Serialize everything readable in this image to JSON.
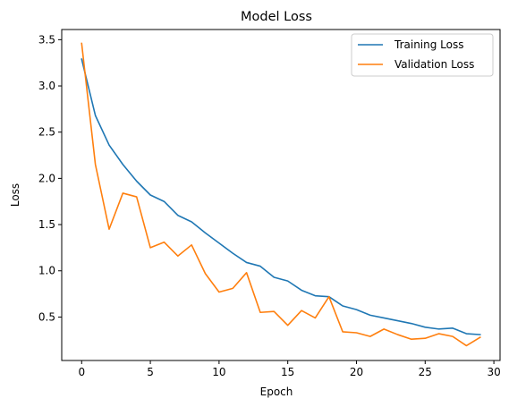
{
  "chart_data": {
    "type": "line",
    "title": "Model Loss",
    "xlabel": "Epoch",
    "ylabel": "Loss",
    "xlim": [
      -1.45,
      30.45
    ],
    "ylim": [
      0.03,
      3.61
    ],
    "xticks": [
      0,
      5,
      10,
      15,
      20,
      25,
      30
    ],
    "yticks": [
      0.5,
      1.0,
      1.5,
      2.0,
      2.5,
      3.0,
      3.5
    ],
    "xtick_labels": [
      "0",
      "5",
      "10",
      "15",
      "20",
      "25",
      "30"
    ],
    "ytick_labels": [
      "0.5",
      "1.0",
      "1.5",
      "2.0",
      "2.5",
      "3.0",
      "3.5"
    ],
    "grid": false,
    "legend_position": "top-right",
    "x": [
      0,
      1,
      2,
      3,
      4,
      5,
      6,
      7,
      8,
      9,
      10,
      11,
      12,
      13,
      14,
      15,
      16,
      17,
      18,
      19,
      20,
      21,
      22,
      23,
      24,
      25,
      26,
      27,
      28,
      29
    ],
    "series": [
      {
        "name": "Training Loss",
        "color": "#1f77b4",
        "values": [
          3.29,
          2.68,
          2.36,
          2.15,
          1.97,
          1.82,
          1.75,
          1.6,
          1.53,
          1.41,
          1.3,
          1.19,
          1.09,
          1.05,
          0.93,
          0.89,
          0.79,
          0.73,
          0.72,
          0.62,
          0.58,
          0.52,
          0.49,
          0.46,
          0.43,
          0.39,
          0.37,
          0.38,
          0.32,
          0.31
        ]
      },
      {
        "name": "Validation Loss",
        "color": "#ff7f0e",
        "values": [
          3.46,
          2.15,
          1.45,
          1.84,
          1.8,
          1.25,
          1.31,
          1.16,
          1.28,
          0.97,
          0.77,
          0.81,
          0.98,
          0.55,
          0.56,
          0.41,
          0.57,
          0.49,
          0.72,
          0.34,
          0.33,
          0.29,
          0.37,
          0.31,
          0.26,
          0.27,
          0.32,
          0.29,
          0.19,
          0.28
        ]
      }
    ]
  }
}
